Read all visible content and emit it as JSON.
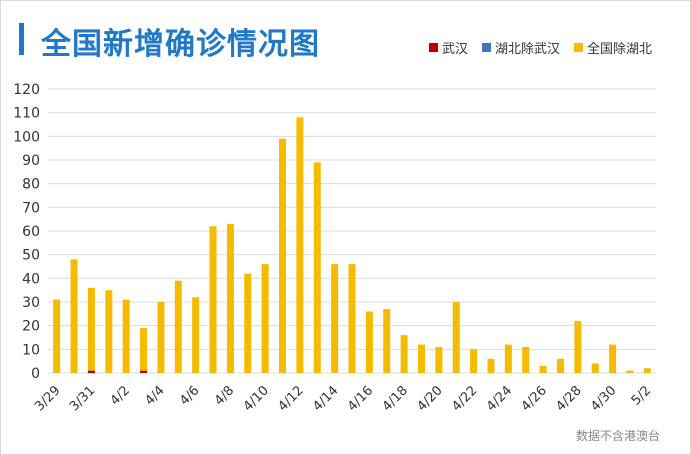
{
  "colors": {
    "title": "#1f78c8",
    "grid": "#dcdcdc",
    "axis_text": "#333333"
  },
  "source_note": "数据不含港澳台",
  "chart_data": {
    "type": "bar",
    "stacked": true,
    "title": "全国新增确诊情况图",
    "xlabel": "",
    "ylabel": "",
    "ylim": [
      0,
      120
    ],
    "yticks": [
      0,
      10,
      20,
      30,
      40,
      50,
      60,
      70,
      80,
      90,
      100,
      110,
      120
    ],
    "grid": true,
    "legend_position": "top-right",
    "categories": [
      "3/29",
      "3/30",
      "3/31",
      "4/1",
      "4/2",
      "4/3",
      "4/4",
      "4/5",
      "4/6",
      "4/7",
      "4/8",
      "4/9",
      "4/10",
      "4/11",
      "4/12",
      "4/13",
      "4/14",
      "4/15",
      "4/16",
      "4/17",
      "4/18",
      "4/19",
      "4/20",
      "4/21",
      "4/22",
      "4/23",
      "4/24",
      "4/25",
      "4/26",
      "4/27",
      "4/28",
      "4/29",
      "4/30",
      "5/1",
      "5/2"
    ],
    "tick_labels": [
      "3/29",
      "3/31",
      "4/2",
      "4/4",
      "4/6",
      "4/8",
      "4/10",
      "4/12",
      "4/14",
      "4/16",
      "4/18",
      "4/20",
      "4/22",
      "4/24",
      "4/26",
      "4/28",
      "4/30",
      "5/2"
    ],
    "series": [
      {
        "name": "武汉",
        "color": "#c00000",
        "values": [
          0,
          0,
          1,
          0,
          0,
          1,
          0,
          0,
          0,
          0,
          0,
          0,
          0,
          0,
          0,
          0,
          0,
          0,
          0,
          0,
          0,
          0,
          0,
          0,
          0,
          0,
          0,
          0,
          0,
          0,
          0,
          0,
          0,
          0,
          0
        ]
      },
      {
        "name": "湖北除武汉",
        "color": "#4472c4",
        "values": [
          0,
          0,
          0,
          0,
          0,
          0,
          0,
          0,
          0,
          0,
          0,
          0,
          0,
          0,
          0,
          0,
          0,
          0,
          0,
          0,
          0,
          0,
          0,
          0,
          0,
          0,
          0,
          0,
          0,
          0,
          0,
          0,
          0,
          0,
          0
        ]
      },
      {
        "name": "全国除湖北",
        "color": "#f5bb00",
        "values": [
          31,
          48,
          35,
          35,
          31,
          18,
          30,
          39,
          32,
          62,
          63,
          42,
          46,
          99,
          108,
          89,
          46,
          46,
          26,
          27,
          16,
          12,
          11,
          30,
          10,
          6,
          12,
          11,
          3,
          6,
          22,
          4,
          12,
          1,
          2
        ]
      }
    ]
  }
}
